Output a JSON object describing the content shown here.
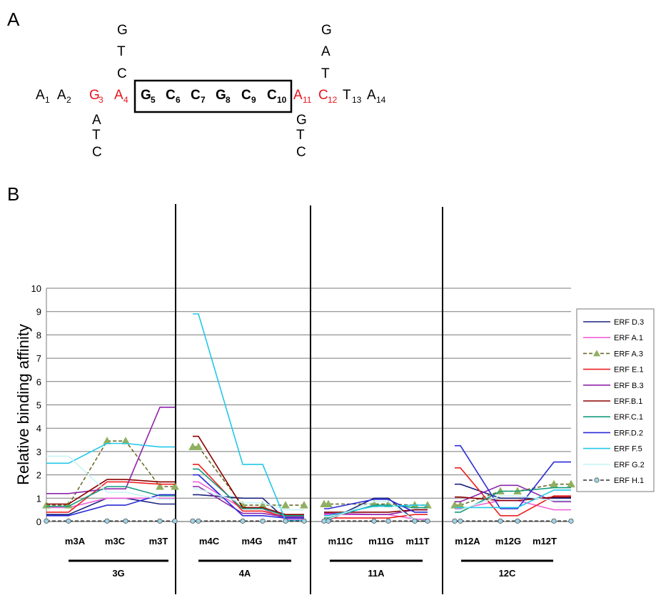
{
  "panel_a": {
    "label": "A",
    "sequence": [
      {
        "base": "A",
        "num": "1",
        "color": "#000000",
        "bold": false
      },
      {
        "base": "A",
        "num": "2",
        "color": "#000000",
        "bold": false
      },
      {
        "base": "G",
        "num": "3",
        "color": "#e8141c",
        "bold": false
      },
      {
        "base": "A",
        "num": "4",
        "color": "#e8141c",
        "bold": false
      },
      {
        "base": "G",
        "num": "5",
        "color": "#000000",
        "bold": true
      },
      {
        "base": "C",
        "num": "6",
        "color": "#000000",
        "bold": true
      },
      {
        "base": "C",
        "num": "7",
        "color": "#000000",
        "bold": true
      },
      {
        "base": "G",
        "num": "8",
        "color": "#000000",
        "bold": true
      },
      {
        "base": "C",
        "num": "9",
        "color": "#000000",
        "bold": true
      },
      {
        "base": "C",
        "num": "10",
        "color": "#000000",
        "bold": true
      },
      {
        "base": "A",
        "num": "11",
        "color": "#e8141c",
        "bold": false
      },
      {
        "base": "C",
        "num": "12",
        "color": "#e8141c",
        "bold": false
      },
      {
        "base": "T",
        "num": "13",
        "color": "#000000",
        "bold": false
      },
      {
        "base": "A",
        "num": "14",
        "color": "#000000",
        "bold": false
      }
    ],
    "variants": [
      {
        "position": "3",
        "bases": [
          "A",
          "T",
          "C"
        ]
      },
      {
        "position": "4",
        "bases": [
          "G",
          "T",
          "C"
        ]
      },
      {
        "position": "11",
        "bases": [
          "G",
          "T",
          "C"
        ]
      },
      {
        "position": "12",
        "bases": [
          "G",
          "A",
          "T"
        ]
      }
    ]
  },
  "chart_data": {
    "panel_label": "B",
    "type": "line",
    "ylabel": "Relative binding affinity",
    "ylim": [
      0,
      10
    ],
    "yticks": [
      "0",
      "1",
      "2",
      "3",
      "4",
      "5",
      "6",
      "7",
      "8",
      "9",
      "10"
    ],
    "grid": true,
    "legend_position": "right",
    "groups": [
      {
        "name": "3G",
        "categories": [
          "m3A",
          "m3C",
          "m3T"
        ]
      },
      {
        "name": "4A",
        "categories": [
          "m4C",
          "m4G",
          "m4T"
        ]
      },
      {
        "name": "11A",
        "categories": [
          "m11C",
          "m11G",
          "m11T"
        ]
      },
      {
        "name": "12C",
        "categories": [
          "m12A",
          "m12G",
          "m12T"
        ]
      }
    ],
    "series": [
      {
        "name": "ERF D.3",
        "color": "#1a237e",
        "style": "solid",
        "marker": "none",
        "values": [
          [
            0.3,
            1,
            0.75
          ],
          [
            1.15,
            1,
            0.1
          ],
          [
            0.05,
            1,
            0.05
          ],
          [
            1.6,
            1,
            1.0
          ]
        ]
      },
      {
        "name": "ERF A.1",
        "color": "#f062d8",
        "style": "solid",
        "marker": "none",
        "values": [
          [
            0.6,
            1,
            1.0
          ],
          [
            1.7,
            0.55,
            0.1
          ],
          [
            0.3,
            0.3,
            0.1
          ],
          [
            0.55,
            0.9,
            0.5
          ]
        ]
      },
      {
        "name": "ERF A.3",
        "color": "#6b6b2a",
        "style": "dashed",
        "marker": "triangle",
        "marker_color": "#8fb061",
        "values": [
          [
            0.7,
            3.45,
            1.5
          ],
          [
            3.2,
            0.7,
            0.7
          ],
          [
            0.75,
            0.75,
            0.7
          ],
          [
            0.7,
            1.3,
            1.6
          ]
        ]
      },
      {
        "name": "ERF E.1",
        "color": "#ee2020",
        "style": "solid",
        "marker": "none",
        "values": [
          [
            0.4,
            1.7,
            1.6
          ],
          [
            2.45,
            0.45,
            0.2
          ],
          [
            0.15,
            0.15,
            0.3
          ],
          [
            2.3,
            0.25,
            1.1
          ]
        ]
      },
      {
        "name": "ERF B.3",
        "color": "#8e24aa",
        "style": "solid",
        "marker": "none",
        "values": [
          [
            1.2,
            1.4,
            4.9
          ],
          [
            1.5,
            0.35,
            0.2
          ],
          [
            0.35,
            0.3,
            0.5
          ],
          [
            0.85,
            1.55,
            0.85
          ]
        ]
      },
      {
        "name": "ERF.B.1",
        "color": "#8b0000",
        "style": "solid",
        "marker": "none",
        "values": [
          [
            0.75,
            1.8,
            1.7
          ],
          [
            3.65,
            0.6,
            0.3
          ],
          [
            0.4,
            0.4,
            0.5
          ],
          [
            1.05,
            0.9,
            1.05
          ]
        ]
      },
      {
        "name": "ERF.C.1",
        "color": "#149b7e",
        "style": "solid",
        "marker": "none",
        "values": [
          [
            0.65,
            1.5,
            1.1
          ],
          [
            2.25,
            0.55,
            0.25
          ],
          [
            0.15,
            0.7,
            0.6
          ],
          [
            0.4,
            1.3,
            1.45
          ]
        ]
      },
      {
        "name": "ERF.D.2",
        "color": "#2a2ad8",
        "style": "solid",
        "marker": "none",
        "values": [
          [
            0.25,
            0.7,
            1.15
          ],
          [
            2.0,
            0.25,
            0.15
          ],
          [
            0.55,
            0.95,
            0.4
          ],
          [
            3.25,
            0.55,
            2.55
          ]
        ]
      },
      {
        "name": "ERF F.5",
        "color": "#22c8e8",
        "style": "solid",
        "marker": "none",
        "values": [
          [
            2.5,
            3.35,
            3.2
          ],
          [
            8.9,
            2.45,
            0.05
          ],
          [
            0.25,
            0.65,
            0.7
          ],
          [
            0.6,
            0.6,
            1.35
          ]
        ]
      },
      {
        "name": "ERF G.2",
        "color": "#c8f4f4",
        "style": "solid",
        "marker": "none",
        "values": [
          [
            2.8,
            1.25,
            0.95
          ],
          [
            1.4,
            0.8,
            0.5
          ],
          [
            0.1,
            0.85,
            0.05
          ],
          [
            0.5,
            1.1,
            0.9
          ]
        ]
      },
      {
        "name": "ERF H.1",
        "color": "#333333",
        "style": "dashed",
        "marker": "circle",
        "marker_color": "#9fd4e8",
        "values": [
          [
            0.02,
            0.02,
            0.02
          ],
          [
            0.02,
            0.02,
            0.02
          ],
          [
            0.02,
            0.02,
            0.02
          ],
          [
            0.02,
            0.02,
            0.02
          ]
        ]
      }
    ]
  }
}
